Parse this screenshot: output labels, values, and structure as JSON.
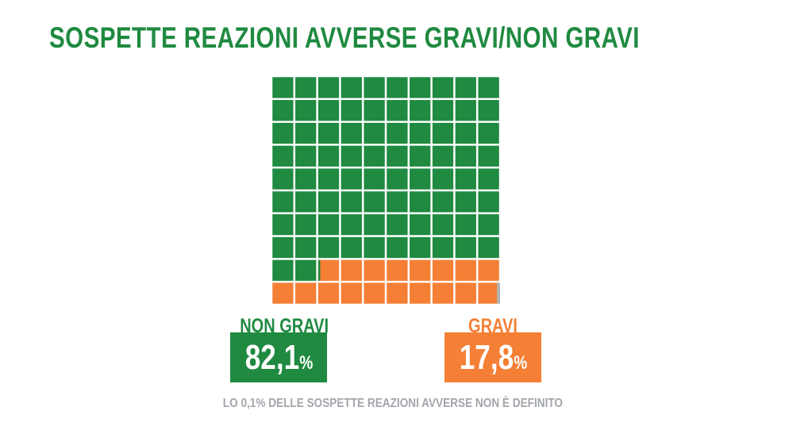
{
  "title": "SOSPETTE REAZIONI AVVERSE GRAVI/NON GRAVI",
  "footnote": "LO 0,1% DELLE SOSPETTE REAZIONI AVVERSE NON È DEFINITO",
  "colors": {
    "non_gravi": "#1f8a40",
    "gravi": "#f47f35",
    "undefined": "#b4b4b4",
    "footnote": "#a2a6ab"
  },
  "chart_data": {
    "type": "waffle",
    "title": "SOSPETTE REAZIONI AVVERSE GRAVI/NON GRAVI",
    "grid": [
      10,
      10
    ],
    "series": [
      {
        "name": "NON GRAVI",
        "value_label": "82,1",
        "unit": "%",
        "value": 82.1,
        "color": "#1f8a40"
      },
      {
        "name": "GRAVI",
        "value_label": "17,8",
        "unit": "%",
        "value": 17.8,
        "color": "#f47f35"
      }
    ],
    "undefined_value": 0.1
  }
}
